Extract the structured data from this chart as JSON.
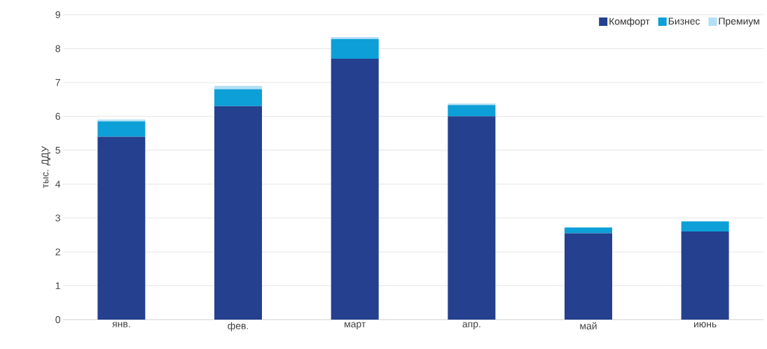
{
  "chart_data": {
    "type": "bar",
    "stacked": true,
    "ylabel": "тыс. ДДУ",
    "categories": [
      "янв.",
      "фев.",
      "март",
      "апр.",
      "май",
      "июнь"
    ],
    "series": [
      {
        "name": "Комфорт",
        "color": "#24408e",
        "values": [
          5.4,
          6.3,
          7.7,
          6.0,
          2.55,
          2.6
        ]
      },
      {
        "name": "Бизнес",
        "color": "#0c9fd8",
        "values": [
          0.45,
          0.5,
          0.58,
          0.33,
          0.17,
          0.3
        ]
      },
      {
        "name": "Премиум",
        "color": "#b3e0f4",
        "values": [
          0.06,
          0.1,
          0.06,
          0.05,
          null,
          null
        ]
      }
    ],
    "ylim": [
      0,
      9
    ],
    "yticks": [
      0,
      1,
      2,
      3,
      4,
      5,
      6,
      7,
      8,
      9
    ],
    "grid": "y",
    "legend": "top right"
  }
}
